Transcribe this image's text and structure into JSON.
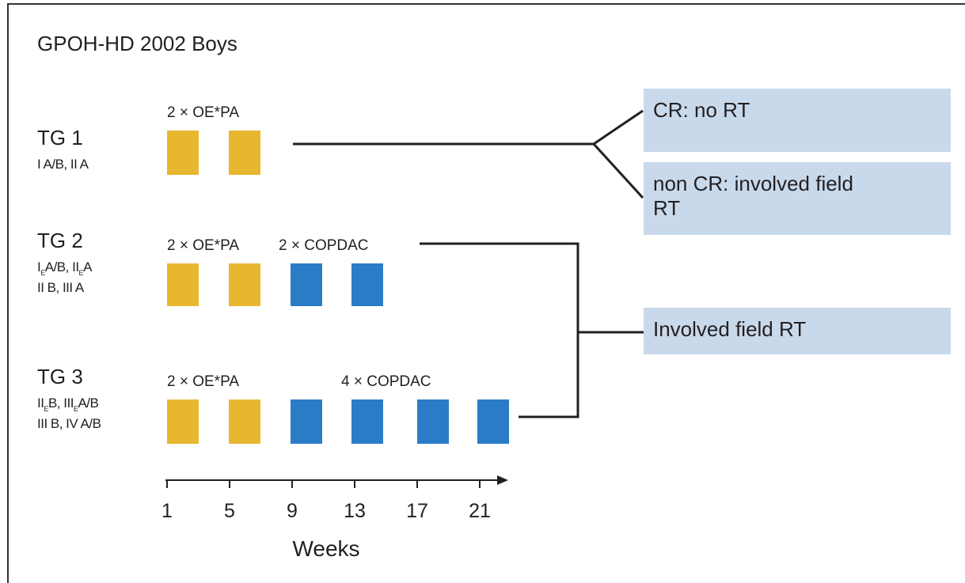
{
  "title": "GPOH-HD 2002 Boys",
  "groups": [
    {
      "label": "TG 1",
      "stages": [
        [
          {
            "text": "I A/B, II A"
          }
        ]
      ],
      "regimens": [
        "2 × OE*PA"
      ]
    },
    {
      "label": "TG 2",
      "stages": [
        [
          {
            "text": "I"
          },
          {
            "sub": "E"
          },
          {
            "text": "A/B, II"
          },
          {
            "sub": "E"
          },
          {
            "text": "A"
          }
        ],
        [
          {
            "text": "II B, III A"
          }
        ]
      ],
      "regimens": [
        "2 × OE*PA",
        "2 × COPDAC"
      ]
    },
    {
      "label": "TG 3",
      "stages": [
        [
          {
            "text": "II"
          },
          {
            "sub": "E"
          },
          {
            "text": "B, III"
          },
          {
            "sub": "E"
          },
          {
            "text": "A/B"
          }
        ],
        [
          {
            "text": "III B, IV A/B"
          }
        ]
      ],
      "regimens": [
        "2 × OE*PA",
        "4 × COPDAC"
      ]
    }
  ],
  "outcomes": [
    [
      "CR: no RT"
    ],
    [
      "non CR: involved field",
      "RT"
    ],
    [
      "Involved field RT"
    ]
  ],
  "axis": {
    "ticks": [
      1,
      5,
      9,
      13,
      17,
      21
    ],
    "label": "Weeks"
  }
}
